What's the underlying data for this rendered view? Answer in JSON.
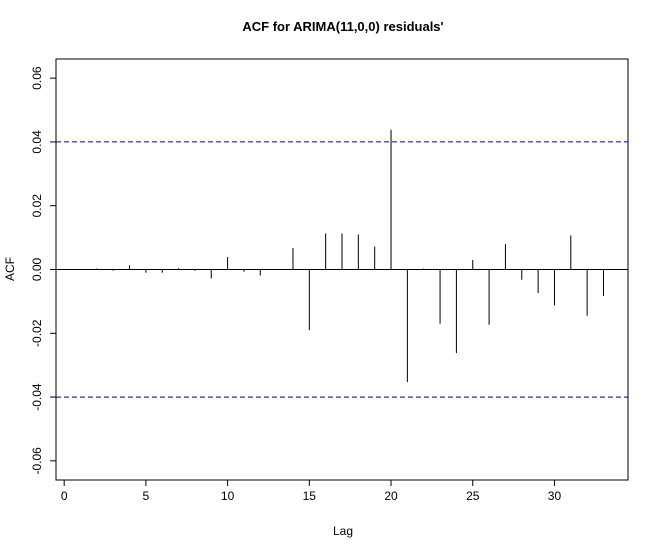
{
  "chart_data": {
    "type": "bar",
    "title": "ACF for ARIMA(11,0,0) residuals'",
    "xlabel": "Lag",
    "ylabel": "ACF",
    "xlim": [
      -0.5,
      34.5
    ],
    "ylim": [
      -0.066,
      0.066
    ],
    "x_ticks": [
      0,
      5,
      10,
      15,
      20,
      25,
      30
    ],
    "x_tick_labels": [
      "0",
      "5",
      "10",
      "15",
      "20",
      "25",
      "30"
    ],
    "y_ticks": [
      -0.06,
      -0.04,
      -0.02,
      0.0,
      0.02,
      0.04,
      0.06
    ],
    "y_tick_labels": [
      "-0.06",
      "-0.04",
      "-0.02",
      "0.00",
      "0.02",
      "0.04",
      "0.06"
    ],
    "confidence_bounds": [
      0.04,
      -0.04
    ],
    "confidence_line_color": "#00008b",
    "grid": false,
    "lags": [
      2,
      3,
      4,
      5,
      6,
      7,
      8,
      9,
      10,
      11,
      12,
      13,
      14,
      15,
      16,
      17,
      18,
      19,
      20,
      21,
      22,
      23,
      24,
      25,
      26,
      27,
      28,
      29,
      30,
      31,
      32,
      33
    ],
    "values": [
      0.0003,
      -0.0004,
      0.0013,
      -0.001,
      -0.001,
      0.0004,
      -0.0004,
      -0.0028,
      0.0039,
      -0.0007,
      -0.0019,
      0.0001,
      0.0067,
      -0.019,
      0.0113,
      0.0113,
      0.011,
      0.0072,
      0.0438,
      -0.0353,
      0.0003,
      -0.017,
      -0.0262,
      0.003,
      -0.0173,
      0.008,
      -0.0032,
      -0.0074,
      -0.0113,
      0.0107,
      -0.0145,
      -0.0083
    ]
  }
}
